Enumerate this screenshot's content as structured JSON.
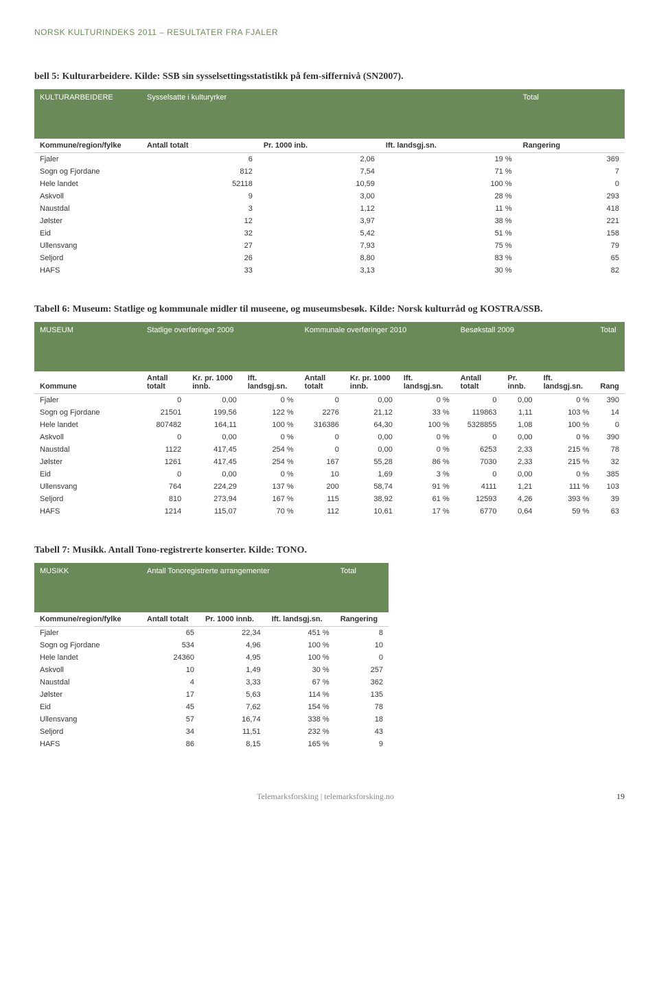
{
  "header": {
    "title": "NORSK KULTURINDEKS 2011 – RESULTATER FRA FJALER"
  },
  "table5": {
    "caption": "bell 5: Kulturarbeidere. Kilde: SSB sin sysselsettingsstatistikk på fem-siffernivå (SN2007).",
    "group": {
      "name": "KULTURARBEIDERE",
      "col1": "Sysselsatte i kulturyrker",
      "col2": "Total"
    },
    "columns": [
      "Kommune/region/fylke",
      "Antall totalt",
      "Pr. 1000 inb.",
      "Ift. landsgj.sn.",
      "Rangering"
    ],
    "rows": [
      [
        "Fjaler",
        "6",
        "2,06",
        "19 %",
        "369"
      ],
      [
        "Sogn og Fjordane",
        "812",
        "7,54",
        "71 %",
        "7"
      ],
      [
        "Hele landet",
        "52118",
        "10,59",
        "100 %",
        "0"
      ],
      [
        "Askvoll",
        "9",
        "3,00",
        "28 %",
        "293"
      ],
      [
        "Naustdal",
        "3",
        "1,12",
        "11 %",
        "418"
      ],
      [
        "Jølster",
        "12",
        "3,97",
        "38 %",
        "221"
      ],
      [
        "Eid",
        "32",
        "5,42",
        "51 %",
        "158"
      ],
      [
        "Ullensvang",
        "27",
        "7,93",
        "75 %",
        "79"
      ],
      [
        "Seljord",
        "26",
        "8,80",
        "83 %",
        "65"
      ],
      [
        "HAFS",
        "33",
        "3,13",
        "30 %",
        "82"
      ]
    ]
  },
  "table6": {
    "caption": "Tabell 6: Museum: Statlige og kommunale midler til museene, og museumsbesøk. Kilde: Norsk kulturråd og KOSTRA/SSB.",
    "group": {
      "name": "MUSEUM",
      "col1": "Statlige overføringer 2009",
      "col2": "Kommunale overføringer 2010",
      "col3": "Besøkstall 2009",
      "col4": "Total"
    },
    "columns": [
      "Kommune",
      "Antall totalt",
      "Kr. pr. 1000 innb.",
      "Ift. landsgj.sn.",
      "Antall totalt",
      "Kr. pr. 1000 innb.",
      "Ift. landsgj.sn.",
      "Antall totalt",
      "Pr. innb.",
      "Ift. landsgj.sn.",
      "Rang"
    ],
    "rows": [
      [
        "Fjaler",
        "0",
        "0,00",
        "0 %",
        "0",
        "0,00",
        "0 %",
        "0",
        "0,00",
        "0 %",
        "390"
      ],
      [
        "Sogn og Fjordane",
        "21501",
        "199,56",
        "122 %",
        "2276",
        "21,12",
        "33 %",
        "119863",
        "1,11",
        "103 %",
        "14"
      ],
      [
        "Hele landet",
        "807482",
        "164,11",
        "100 %",
        "316386",
        "64,30",
        "100 %",
        "5328855",
        "1,08",
        "100 %",
        "0"
      ],
      [
        "Askvoll",
        "0",
        "0,00",
        "0 %",
        "0",
        "0,00",
        "0 %",
        "0",
        "0,00",
        "0 %",
        "390"
      ],
      [
        "Naustdal",
        "1122",
        "417,45",
        "254 %",
        "0",
        "0,00",
        "0 %",
        "6253",
        "2,33",
        "215 %",
        "78"
      ],
      [
        "Jølster",
        "1261",
        "417,45",
        "254 %",
        "167",
        "55,28",
        "86 %",
        "7030",
        "2,33",
        "215 %",
        "32"
      ],
      [
        "Eid",
        "0",
        "0,00",
        "0 %",
        "10",
        "1,69",
        "3 %",
        "0",
        "0,00",
        "0 %",
        "385"
      ],
      [
        "Ullensvang",
        "764",
        "224,29",
        "137 %",
        "200",
        "58,74",
        "91 %",
        "4111",
        "1,21",
        "111 %",
        "103"
      ],
      [
        "Seljord",
        "810",
        "273,94",
        "167 %",
        "115",
        "38,92",
        "61 %",
        "12593",
        "4,26",
        "393 %",
        "39"
      ],
      [
        "HAFS",
        "1214",
        "115,07",
        "70 %",
        "112",
        "10,61",
        "17 %",
        "6770",
        "0,64",
        "59 %",
        "63"
      ]
    ]
  },
  "table7": {
    "caption": "Tabell 7: Musikk. Antall Tono-registrerte konserter. Kilde: TONO.",
    "group": {
      "name": "MUSIKK",
      "col1": "Antall Tonoregistrerte arrangementer",
      "col2": "Total"
    },
    "columns": [
      "Kommune/region/fylke",
      "Antall totalt",
      "Pr. 1000 innb.",
      "Ift. landsgj.sn.",
      "Rangering"
    ],
    "rows": [
      [
        "Fjaler",
        "65",
        "22,34",
        "451 %",
        "8"
      ],
      [
        "Sogn og Fjordane",
        "534",
        "4,96",
        "100 %",
        "10"
      ],
      [
        "Hele landet",
        "24360",
        "4,95",
        "100 %",
        "0"
      ],
      [
        "Askvoll",
        "10",
        "1,49",
        "30 %",
        "257"
      ],
      [
        "Naustdal",
        "4",
        "3,33",
        "67 %",
        "362"
      ],
      [
        "Jølster",
        "17",
        "5,63",
        "114 %",
        "135"
      ],
      [
        "Eid",
        "45",
        "7,62",
        "154 %",
        "78"
      ],
      [
        "Ullensvang",
        "57",
        "16,74",
        "338 %",
        "18"
      ],
      [
        "Seljord",
        "34",
        "11,51",
        "232 %",
        "43"
      ],
      [
        "HAFS",
        "86",
        "8,15",
        "165 %",
        "9"
      ]
    ]
  },
  "footer": {
    "text": "Telemarksforsking  |  telemarksforsking.no",
    "page": "19"
  },
  "style": {
    "header_color": "#6b8a5a",
    "header_fontsize": 12,
    "caption_fontsize": 14,
    "body_fontsize": 11,
    "background": "#ffffff",
    "text_color": "#333333"
  }
}
